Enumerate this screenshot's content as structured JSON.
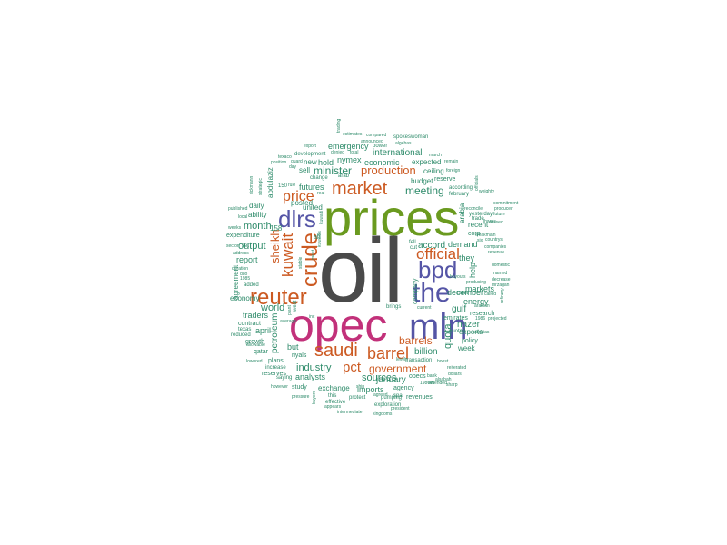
{
  "palette": {
    "dark_gray": "#4a4a4a",
    "green": "#6a9a1f",
    "magenta": "#c2317a",
    "blue_violet": "#5555a6",
    "orange": "#cc5a22",
    "teal": "#2e8b6a"
  },
  "words": [
    {
      "text": "oil",
      "color": "dark_gray"
    },
    {
      "text": "prices",
      "color": "green"
    },
    {
      "text": "opec",
      "color": "magenta"
    },
    {
      "text": "mln",
      "color": "blue_violet"
    },
    {
      "text": "the",
      "color": "blue_violet"
    },
    {
      "text": "bpd",
      "color": "blue_violet"
    },
    {
      "text": "dlrs",
      "color": "blue_violet"
    },
    {
      "text": "reuter",
      "color": "orange"
    },
    {
      "text": "crude",
      "color": "orange"
    },
    {
      "text": "market",
      "color": "orange"
    },
    {
      "text": "saudi",
      "color": "orange"
    },
    {
      "text": "barrel",
      "color": "orange"
    },
    {
      "text": "official",
      "color": "orange"
    },
    {
      "text": "kuwait",
      "color": "orange"
    },
    {
      "text": "production",
      "color": "orange"
    },
    {
      "text": "price",
      "color": "orange"
    },
    {
      "text": "pct",
      "color": "orange"
    },
    {
      "text": "sheikh",
      "color": "orange"
    },
    {
      "text": "government",
      "color": "orange"
    },
    {
      "text": "barrels",
      "color": "orange"
    },
    {
      "text": "minister",
      "color": "teal"
    },
    {
      "text": "meeting",
      "color": "teal"
    },
    {
      "text": "month",
      "color": "teal"
    },
    {
      "text": "futures",
      "color": "teal"
    },
    {
      "text": "output",
      "color": "teal"
    },
    {
      "text": "world",
      "color": "teal"
    },
    {
      "text": "petroleum",
      "color": "teal"
    },
    {
      "text": "industry",
      "color": "teal"
    },
    {
      "text": "sources",
      "color": "teal"
    },
    {
      "text": "quota",
      "color": "teal"
    },
    {
      "text": "billion",
      "color": "teal"
    },
    {
      "text": "accord",
      "color": "teal"
    },
    {
      "text": "demand",
      "color": "teal"
    },
    {
      "text": "markets",
      "color": "teal"
    },
    {
      "text": "international",
      "color": "teal"
    },
    {
      "text": "economic",
      "color": "teal"
    },
    {
      "text": "nymex",
      "color": "teal"
    },
    {
      "text": "emergency",
      "color": "teal"
    },
    {
      "text": "budget",
      "color": "teal"
    },
    {
      "text": "ceiling",
      "color": "teal"
    },
    {
      "text": "report",
      "color": "teal"
    },
    {
      "text": "daily",
      "color": "teal"
    },
    {
      "text": "ability",
      "color": "teal"
    },
    {
      "text": "expenditure",
      "color": "teal"
    },
    {
      "text": "posted",
      "color": "teal"
    },
    {
      "text": "united",
      "color": "teal"
    },
    {
      "text": "sell",
      "color": "teal"
    },
    {
      "text": "hold",
      "color": "teal"
    },
    {
      "text": "new",
      "color": "teal"
    },
    {
      "text": "expected",
      "color": "teal"
    },
    {
      "text": "reserve",
      "color": "teal"
    },
    {
      "text": "february",
      "color": "teal"
    },
    {
      "text": "according",
      "color": "teal"
    },
    {
      "text": "yesterday",
      "color": "teal"
    },
    {
      "text": "recent",
      "color": "teal"
    },
    {
      "text": "corp",
      "color": "teal"
    },
    {
      "text": "they",
      "color": "teal"
    },
    {
      "text": "help",
      "color": "teal"
    },
    {
      "text": "arabia",
      "color": "teal"
    },
    {
      "text": "trade",
      "color": "teal"
    },
    {
      "text": "company",
      "color": "teal"
    },
    {
      "text": "energy",
      "color": "teal"
    },
    {
      "text": "december",
      "color": "teal"
    },
    {
      "text": "gulf",
      "color": "teal"
    },
    {
      "text": "research",
      "color": "teal"
    },
    {
      "text": "nazer",
      "color": "teal"
    },
    {
      "text": "emirates",
      "color": "teal"
    },
    {
      "text": "exports",
      "color": "teal"
    },
    {
      "text": "quoted",
      "color": "teal"
    },
    {
      "text": "policy",
      "color": "teal"
    },
    {
      "text": "week",
      "color": "teal"
    },
    {
      "text": "january",
      "color": "teal"
    },
    {
      "text": "agency",
      "color": "teal"
    },
    {
      "text": "imports",
      "color": "teal"
    },
    {
      "text": "exchange",
      "color": "teal"
    },
    {
      "text": "analysts",
      "color": "teal"
    },
    {
      "text": "study",
      "color": "teal"
    },
    {
      "text": "this",
      "color": "teal"
    },
    {
      "text": "effective",
      "color": "teal"
    },
    {
      "text": "exploration",
      "color": "teal"
    },
    {
      "text": "revenues",
      "color": "teal"
    },
    {
      "text": "pumping",
      "color": "teal"
    },
    {
      "text": "agreement",
      "color": "teal"
    },
    {
      "text": "economy",
      "color": "teal"
    },
    {
      "text": "traders",
      "color": "teal"
    },
    {
      "text": "contract",
      "color": "teal"
    },
    {
      "text": "april",
      "color": "teal"
    },
    {
      "text": "growth",
      "color": "teal"
    },
    {
      "text": "qatar",
      "color": "teal"
    },
    {
      "text": "reserves",
      "color": "teal"
    },
    {
      "text": "increase",
      "color": "teal"
    },
    {
      "text": "plans",
      "color": "teal"
    },
    {
      "text": "but",
      "color": "teal"
    },
    {
      "text": "riyals",
      "color": "teal"
    },
    {
      "text": "west",
      "color": "teal"
    },
    {
      "text": "ali",
      "color": "teal"
    },
    {
      "text": "158",
      "color": "teal"
    },
    {
      "text": "abdulaziz",
      "color": "teal"
    },
    {
      "text": "development",
      "color": "teal"
    },
    {
      "text": "arab",
      "color": "teal"
    },
    {
      "text": "change",
      "color": "teal"
    },
    {
      "text": "brings",
      "color": "teal"
    },
    {
      "text": "transaction",
      "color": "teal"
    },
    {
      "text": "fell",
      "color": "teal"
    },
    {
      "text": "cut",
      "color": "teal"
    },
    {
      "text": "added",
      "color": "teal"
    },
    {
      "text": "reduced",
      "color": "teal"
    },
    {
      "text": "texas",
      "color": "teal"
    },
    {
      "text": "set",
      "color": "teal"
    },
    {
      "text": "local",
      "color": "teal"
    },
    {
      "text": "published",
      "color": "teal"
    },
    {
      "text": "saying",
      "color": "teal"
    },
    {
      "text": "pressure",
      "color": "teal"
    },
    {
      "text": "protect",
      "color": "teal"
    },
    {
      "text": "agreed",
      "color": "teal"
    },
    {
      "text": "appears",
      "color": "teal"
    },
    {
      "text": "intermediate",
      "color": "teal"
    },
    {
      "text": "kingdoms",
      "color": "teal"
    },
    {
      "text": "president",
      "color": "teal"
    },
    {
      "text": "however",
      "color": "teal"
    },
    {
      "text": "lowered",
      "color": "teal"
    },
    {
      "text": "spokeswoman",
      "color": "teal"
    },
    {
      "text": "algebas",
      "color": "teal"
    },
    {
      "text": "compared",
      "color": "teal"
    },
    {
      "text": "announced",
      "color": "teal"
    },
    {
      "text": "power",
      "color": "teal"
    },
    {
      "text": "estimates",
      "color": "teal"
    },
    {
      "text": "denied",
      "color": "teal"
    },
    {
      "text": "total",
      "color": "teal"
    },
    {
      "text": "export",
      "color": "teal"
    },
    {
      "text": "texaco",
      "color": "teal"
    },
    {
      "text": "position",
      "color": "teal"
    },
    {
      "text": "day",
      "color": "teal"
    },
    {
      "text": "guard",
      "color": "teal"
    },
    {
      "text": "march",
      "color": "teal"
    },
    {
      "text": "remain",
      "color": "teal"
    },
    {
      "text": "foreign",
      "color": "teal"
    },
    {
      "text": "officials",
      "color": "teal"
    },
    {
      "text": "weighty",
      "color": "teal"
    },
    {
      "text": "commitment",
      "color": "teal"
    },
    {
      "text": "producer",
      "color": "teal"
    },
    {
      "text": "future",
      "color": "teal"
    },
    {
      "text": "countrys",
      "color": "teal"
    },
    {
      "text": "companies",
      "color": "teal"
    },
    {
      "text": "producing",
      "color": "teal"
    },
    {
      "text": "named",
      "color": "teal"
    },
    {
      "text": "decrease",
      "color": "teal"
    },
    {
      "text": "arabian",
      "color": "teal"
    },
    {
      "text": "projected",
      "color": "teal"
    },
    {
      "text": "refinery",
      "color": "teal"
    },
    {
      "text": "called",
      "color": "teal"
    },
    {
      "text": "boost",
      "color": "teal"
    },
    {
      "text": "dollars",
      "color": "teal"
    },
    {
      "text": "reiterated",
      "color": "teal"
    },
    {
      "text": "alsabah",
      "color": "teal"
    },
    {
      "text": "sharp",
      "color": "teal"
    },
    {
      "text": "opecs",
      "color": "teal"
    },
    {
      "text": "bank",
      "color": "teal"
    },
    {
      "text": "buyers",
      "color": "teal"
    },
    {
      "text": "ship",
      "color": "teal"
    },
    {
      "text": "spa",
      "color": "teal"
    },
    {
      "text": "levels",
      "color": "teal"
    },
    {
      "text": "current",
      "color": "teal"
    },
    {
      "text": "stable",
      "color": "teal"
    },
    {
      "text": "kuwaiti",
      "color": "teal"
    },
    {
      "text": "real",
      "color": "teal"
    },
    {
      "text": "rule",
      "color": "teal"
    },
    {
      "text": "150",
      "color": "teal"
    },
    {
      "text": "1985",
      "color": "teal"
    },
    {
      "text": "1986",
      "color": "teal"
    },
    {
      "text": "1987",
      "color": "teal"
    },
    {
      "text": "address",
      "color": "teal"
    },
    {
      "text": "trading",
      "color": "teal"
    },
    {
      "text": "weeks",
      "color": "teal"
    },
    {
      "text": "sector",
      "color": "teal"
    },
    {
      "text": "inc",
      "color": "teal"
    },
    {
      "text": "mrzagan",
      "color": "teal"
    },
    {
      "text": "buyouts",
      "color": "teal"
    },
    {
      "text": "revenue",
      "color": "teal"
    },
    {
      "text": "domestic",
      "color": "teal"
    },
    {
      "text": "low",
      "color": "teal"
    },
    {
      "text": "lhwais",
      "color": "teal"
    },
    {
      "text": "weakmain",
      "color": "teal"
    },
    {
      "text": "six",
      "color": "teal"
    },
    {
      "text": "duration",
      "color": "teal"
    },
    {
      "text": "duo",
      "color": "teal"
    },
    {
      "text": "allowable",
      "color": "teal"
    },
    {
      "text": "strategic",
      "color": "teal"
    },
    {
      "text": "average",
      "color": "teal"
    },
    {
      "text": "plant",
      "color": "teal"
    },
    {
      "text": "meet",
      "color": "teal"
    },
    {
      "text": "kuwaitis",
      "color": "teal"
    },
    {
      "text": "rickmann",
      "color": "teal"
    },
    {
      "text": "reconcile",
      "color": "teal"
    },
    {
      "text": "arabias",
      "color": "teal"
    },
    {
      "text": "tossed",
      "color": "teal"
    },
    {
      "text": "amended",
      "color": "teal"
    },
    {
      "text": "1986vs",
      "color": "teal"
    }
  ]
}
